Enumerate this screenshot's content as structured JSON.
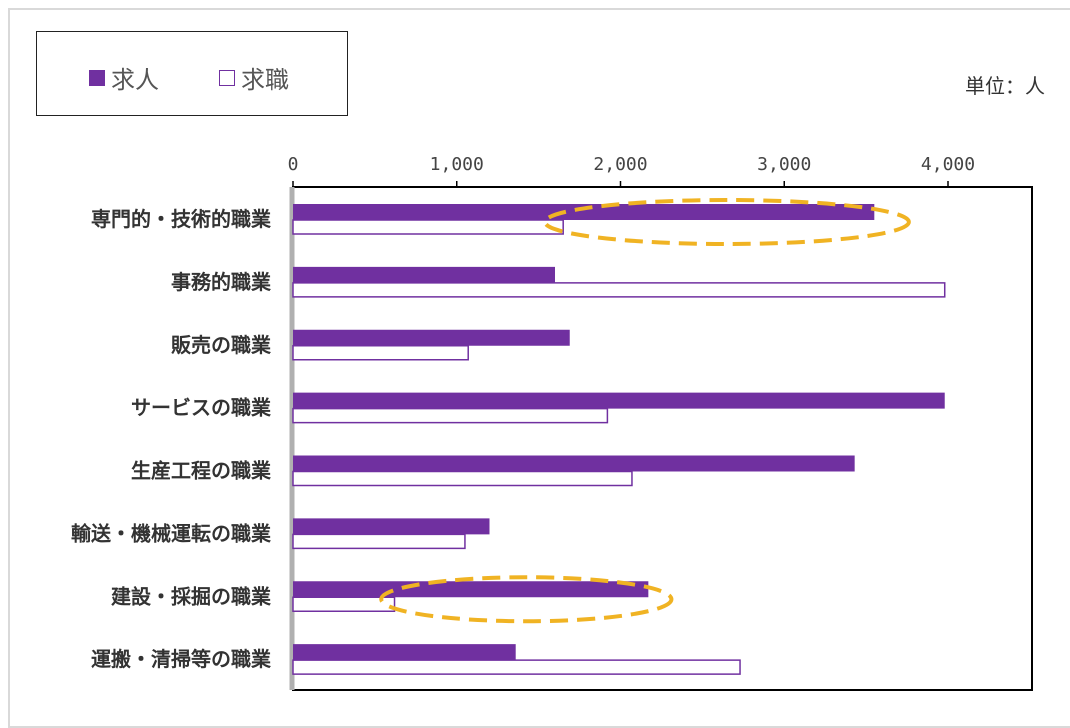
{
  "unit_label": "単位：人",
  "colors": {
    "job_offer": "#7030a0",
    "job_seeker_fill": "#ffffff",
    "job_seeker_stroke": "#7030a0",
    "highlight": "#f0b323",
    "axis": "#000000"
  },
  "chart_data": {
    "type": "bar",
    "orientation": "horizontal",
    "title": "",
    "xlabel": "",
    "ylabel": "",
    "xlim": [
      0,
      4000
    ],
    "x_ticks": [
      0,
      1000,
      2000,
      3000,
      4000
    ],
    "x_tick_labels": [
      "0",
      "1,000",
      "2,000",
      "3,000",
      "4,000"
    ],
    "categories": [
      "専門的・技術的職業",
      "事務的職業",
      "販売の職業",
      "サービスの職業",
      "生産工程の職業",
      "輸送・機械運転の職業",
      "建設・採掘の職業",
      "運搬・清掃等の職業"
    ],
    "series": [
      {
        "name": "求人",
        "values": [
          3550,
          1600,
          1690,
          3980,
          3430,
          1200,
          2170,
          1360
        ]
      },
      {
        "name": "求職",
        "values": [
          1650,
          3980,
          1070,
          1920,
          2070,
          1050,
          620,
          2730
        ]
      }
    ],
    "legend_position": "top-left",
    "grid": false,
    "annotations": [
      {
        "shape": "dashed-ellipse",
        "category": "専門的・技術的職業",
        "x_from": 1600,
        "x_to": 3700
      },
      {
        "shape": "dashed-ellipse",
        "category": "建設・採掘の職業",
        "x_from": 600,
        "x_to": 2250
      }
    ]
  }
}
